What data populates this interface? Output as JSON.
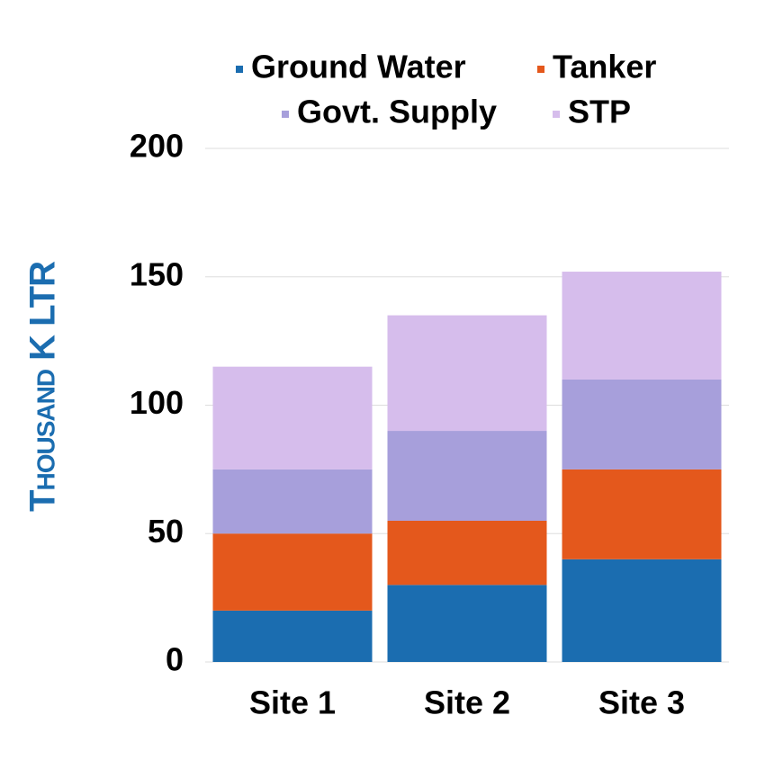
{
  "chart_data": {
    "type": "stacked_bar",
    "y_axis_label": "Thousand K LTR",
    "categories": [
      "Site 1",
      "Site 2",
      "Site 3"
    ],
    "series": [
      {
        "name": "Ground Water",
        "color": "#1b6db0",
        "values": [
          20,
          30,
          40
        ]
      },
      {
        "name": "Tanker",
        "color": "#e4581c",
        "values": [
          30,
          25,
          35
        ]
      },
      {
        "name": "Govt. Supply",
        "color": "#a79fdb",
        "values": [
          25,
          35,
          35
        ]
      },
      {
        "name": "STP",
        "color": "#d6bdec",
        "values": [
          40,
          45,
          42
        ]
      }
    ],
    "ylim": [
      0,
      200
    ],
    "yticks": [
      0,
      50,
      100,
      150,
      200
    ],
    "grid": true,
    "legend": "top"
  }
}
